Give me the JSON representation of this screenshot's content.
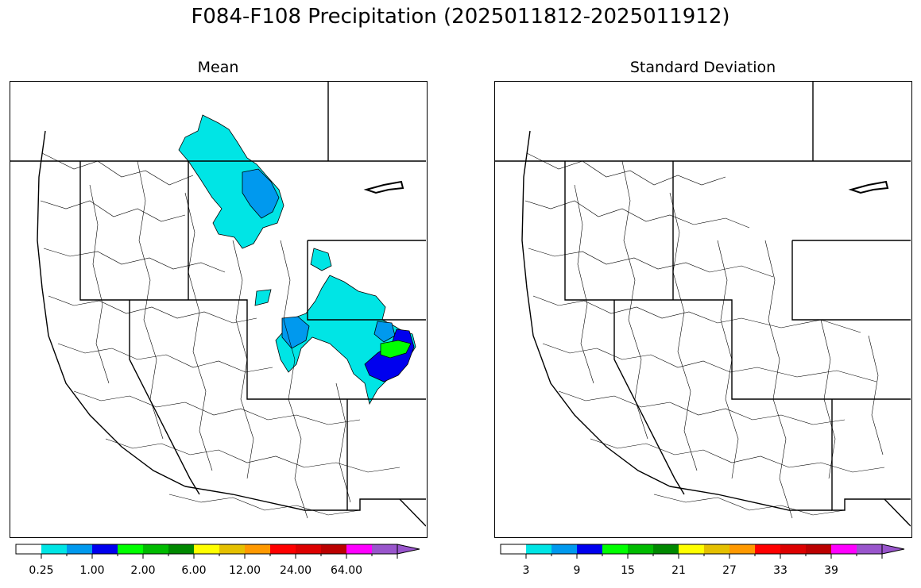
{
  "figure": {
    "title": "F084-F108 Precipitation (2025011812-2025011912)"
  },
  "panels": [
    {
      "title": "Mean",
      "colorbar": {
        "colors": [
          "#ffffff",
          "#00e5e5",
          "#0099ee",
          "#0000ee",
          "#00ff00",
          "#00bb00",
          "#008800",
          "#ffff00",
          "#e5c000",
          "#ff9900",
          "#ff0000",
          "#dd0000",
          "#bb0000",
          "#ff00ff",
          "#9955cc"
        ],
        "tick_labels": [
          "0.25",
          "1.00",
          "2.00",
          "6.00",
          "12.00",
          "24.00",
          "64.00"
        ]
      }
    },
    {
      "title": "Standard Deviation",
      "colorbar": {
        "colors": [
          "#ffffff",
          "#00e5e5",
          "#0099ee",
          "#0000ee",
          "#00ff00",
          "#00bb00",
          "#008800",
          "#ffff00",
          "#e5c000",
          "#ff9900",
          "#ff0000",
          "#dd0000",
          "#bb0000",
          "#ff00ff",
          "#9955cc"
        ],
        "tick_labels": [
          "3",
          "9",
          "15",
          "21",
          "27",
          "33",
          "39"
        ]
      }
    }
  ]
}
